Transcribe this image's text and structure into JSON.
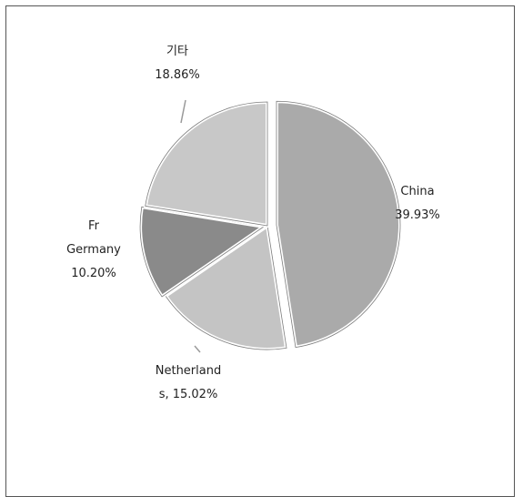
{
  "chart_data": {
    "type": "pie",
    "title": "",
    "slices": [
      {
        "key": "china",
        "label_lines": [
          "China",
          "39.93%"
        ],
        "value": 39.93,
        "color": "#aaaaaa"
      },
      {
        "key": "netherlands",
        "label_lines": [
          "Netherland",
          "s, 15.02%"
        ],
        "value": 15.02,
        "color": "#c4c4c4"
      },
      {
        "key": "germany",
        "label_lines": [
          "Fr",
          "Germany",
          "10.20%"
        ],
        "value": 10.2,
        "color": "#8a8a8a"
      },
      {
        "key": "other",
        "label_lines": [
          "기타",
          "18.86%"
        ],
        "value": 18.86,
        "color": "#c8c8c8"
      }
    ],
    "legend": "none",
    "start_angle_deg": 0,
    "direction": "clockwise"
  }
}
